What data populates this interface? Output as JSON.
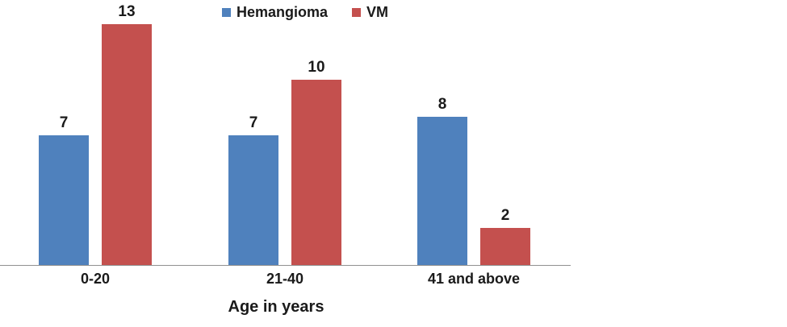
{
  "chart_data": {
    "type": "bar",
    "categories": [
      "0-20",
      "21-40",
      "41 and above"
    ],
    "series": [
      {
        "name": "Hemangioma",
        "color": "#4F81BD",
        "values": [
          7,
          7,
          8
        ]
      },
      {
        "name": "VM",
        "color": "#C4504E",
        "values": [
          13,
          10,
          2
        ]
      }
    ],
    "title": "",
    "xlabel": "Age in years",
    "ylabel": "",
    "ylim": [
      0,
      13
    ],
    "grid": false,
    "legend_position": "top",
    "value_labels": true,
    "axis_line_color": "#909090",
    "text_color": "#1a1a1a"
  }
}
